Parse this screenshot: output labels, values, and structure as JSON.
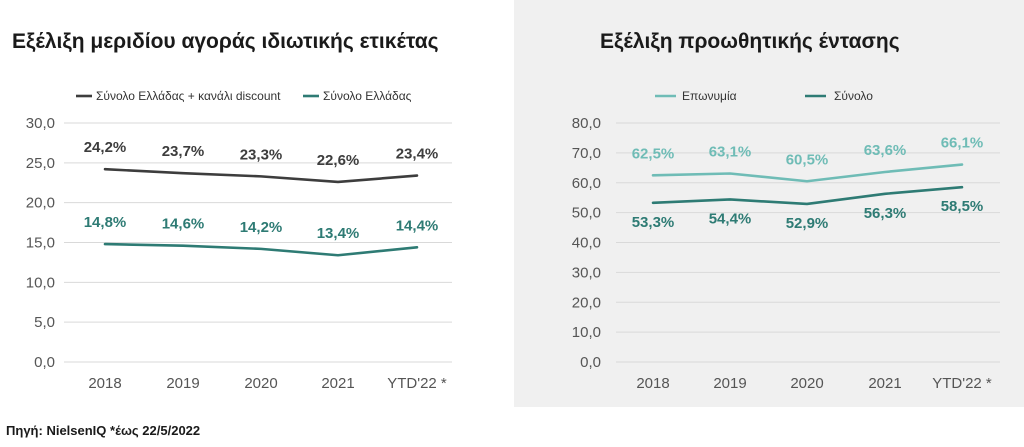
{
  "source_note": "Πηγή: NielsenIQ *έως 22/5/2022",
  "colors": {
    "dark": "#3d3d3d",
    "teal": "#2e7b74",
    "light_teal": "#6fbcb6",
    "grid": "#d9d9d9",
    "panel_bg": "#f0f0f0"
  },
  "chart_data": [
    {
      "type": "line",
      "title": "Εξέλιξη μεριδίου αγοράς ιδιωτικής ετικέτας",
      "categories": [
        "2018",
        "2019",
        "2020",
        "2021",
        "YTD'22 *"
      ],
      "yticks": [
        "0,0",
        "5,0",
        "10,0",
        "15,0",
        "20,0",
        "25,0",
        "30,0"
      ],
      "ylim": [
        0,
        30
      ],
      "grid": true,
      "legend_position": "top",
      "series": [
        {
          "name": "Σύνολο Ελλάδας + κανάλι discount",
          "color": "#3d3d3d",
          "values": [
            24.2,
            23.7,
            23.3,
            22.6,
            23.4
          ],
          "labels": [
            "24,2%",
            "23,7%",
            "23,3%",
            "22,6%",
            "23,4%"
          ]
        },
        {
          "name": "Σύνολο Ελλάδας",
          "color": "#2e7b74",
          "values": [
            14.8,
            14.6,
            14.2,
            13.4,
            14.4
          ],
          "labels": [
            "14,8%",
            "14,6%",
            "14,2%",
            "13,4%",
            "14,4%"
          ]
        }
      ]
    },
    {
      "type": "line",
      "title": "Εξέλιξη προωθητικής έντασης",
      "categories": [
        "2018",
        "2019",
        "2020",
        "2021",
        "YTD'22 *"
      ],
      "yticks": [
        "0,0",
        "10,0",
        "20,0",
        "30,0",
        "40,0",
        "50,0",
        "60,0",
        "70,0",
        "80,0"
      ],
      "ylim": [
        0,
        80
      ],
      "grid": true,
      "legend_position": "top",
      "series": [
        {
          "name": "Επωνυμία",
          "color": "#6fbcb6",
          "values": [
            62.5,
            63.1,
            60.5,
            63.6,
            66.1
          ],
          "labels": [
            "62,5%",
            "63,1%",
            "60,5%",
            "63,6%",
            "66,1%"
          ]
        },
        {
          "name": "Σύνολο",
          "color": "#2e7b74",
          "values": [
            53.3,
            54.4,
            52.9,
            56.3,
            58.5
          ],
          "labels": [
            "53,3%",
            "54,4%",
            "52,9%",
            "56,3%",
            "58,5%"
          ]
        }
      ]
    }
  ]
}
